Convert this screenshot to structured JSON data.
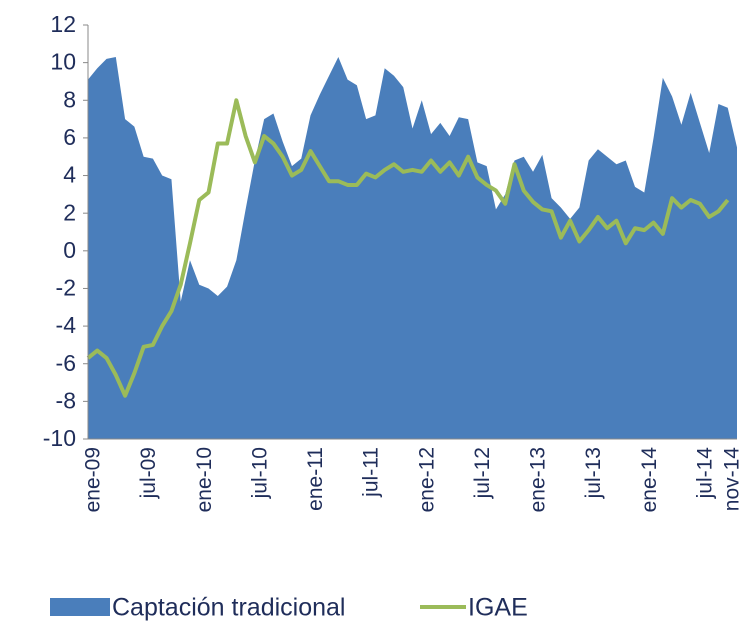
{
  "chart_data": {
    "type": "area_line",
    "categories": [
      "ene-09",
      null,
      null,
      null,
      null,
      null,
      "jul-09",
      null,
      null,
      null,
      null,
      null,
      "ene-10",
      null,
      null,
      null,
      null,
      null,
      "jul-10",
      null,
      null,
      null,
      null,
      null,
      "ene-11",
      null,
      null,
      null,
      null,
      null,
      "jul-11",
      null,
      null,
      null,
      null,
      null,
      "ene-12",
      null,
      null,
      null,
      null,
      null,
      "jul-12",
      null,
      null,
      null,
      null,
      null,
      "ene-13",
      null,
      null,
      null,
      null,
      null,
      "jul-13",
      null,
      null,
      null,
      null,
      null,
      "ene-14",
      null,
      null,
      null,
      null,
      null,
      "jul-14",
      null,
      null,
      null,
      "nov-14"
    ],
    "series": [
      {
        "name": "Captación tradicional",
        "color": "#4a7ebb",
        "kind": "area",
        "values": [
          9.1,
          9.7,
          10.2,
          10.3,
          7.0,
          6.6,
          5.0,
          4.9,
          4.0,
          3.8,
          -2.7,
          -0.5,
          -1.8,
          -2.0,
          -2.4,
          -1.9,
          -0.5,
          2.2,
          4.8,
          7.0,
          7.3,
          5.8,
          4.5,
          4.9,
          7.2,
          8.3,
          9.3,
          10.3,
          9.1,
          8.8,
          7.0,
          7.2,
          9.7,
          9.3,
          8.7,
          6.5,
          8.0,
          6.2,
          6.8,
          6.1,
          7.1,
          7.0,
          4.7,
          4.5,
          2.2,
          3.0,
          4.8,
          5.0,
          4.2,
          5.1,
          2.8,
          2.3,
          1.7,
          2.3,
          4.8,
          5.4,
          5.0,
          4.6,
          4.8,
          3.4,
          3.1,
          6.0,
          9.2,
          8.2,
          6.7,
          8.4,
          6.8,
          5.2,
          7.8,
          7.6,
          5.5
        ]
      },
      {
        "name": "IGAE",
        "color": "#9bbb59",
        "kind": "line",
        "values": [
          -5.7,
          -5.3,
          -5.7,
          -6.6,
          -7.7,
          -6.5,
          -5.1,
          -5.0,
          -4.0,
          -3.2,
          -1.8,
          0.4,
          2.7,
          3.1,
          5.7,
          5.7,
          8.0,
          6.1,
          4.7,
          6.1,
          5.7,
          5.0,
          4.0,
          4.3,
          5.3,
          4.5,
          3.7,
          3.7,
          3.5,
          3.5,
          4.1,
          3.9,
          4.3,
          4.6,
          4.2,
          4.3,
          4.2,
          4.8,
          4.2,
          4.7,
          4.0,
          5.0,
          3.9,
          3.5,
          3.2,
          2.5,
          4.6,
          3.2,
          2.6,
          2.2,
          2.1,
          0.7,
          1.6,
          0.5,
          1.1,
          1.8,
          1.2,
          1.6,
          0.4,
          1.2,
          1.1,
          1.5,
          0.9,
          2.8,
          2.3,
          2.7,
          2.5,
          1.8,
          2.1,
          2.7,
          null
        ]
      }
    ],
    "ylim": [
      -10,
      12
    ],
    "yticks": [
      -10,
      -8,
      -6,
      -4,
      -2,
      0,
      2,
      4,
      6,
      8,
      10,
      12
    ],
    "legend": "bottom"
  }
}
